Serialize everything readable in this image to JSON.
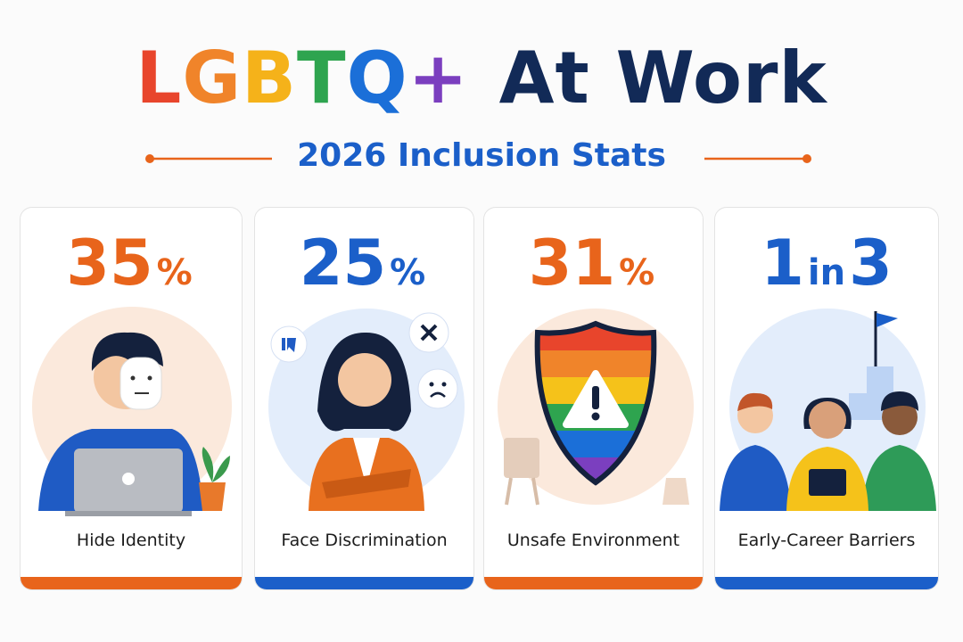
{
  "title": {
    "letters": [
      "L",
      "G",
      "B",
      "T",
      "Q",
      "+"
    ],
    "letter_colors": [
      "#e8452c",
      "#f0842a",
      "#f5b21a",
      "#2ea44f",
      "#1b6fd8",
      "#7b3fbf"
    ],
    "rest": "At Work",
    "rest_color": "#122a57"
  },
  "subtitle": "2026 Inclusion Stats",
  "cards": [
    {
      "stat_parts": [
        "35",
        "%"
      ],
      "label": "Hide Identity",
      "color": "#e8641b"
    },
    {
      "stat_parts": [
        "25",
        "%"
      ],
      "label": "Face Discrimination",
      "color": "#1b5fc9"
    },
    {
      "stat_parts": [
        "31",
        "%"
      ],
      "label": "Unsafe Environment",
      "color": "#e8641b"
    },
    {
      "stat_parts": [
        "1",
        "in",
        "3"
      ],
      "label": "Early-Career Barriers",
      "color": "#1b5fc9"
    }
  ]
}
